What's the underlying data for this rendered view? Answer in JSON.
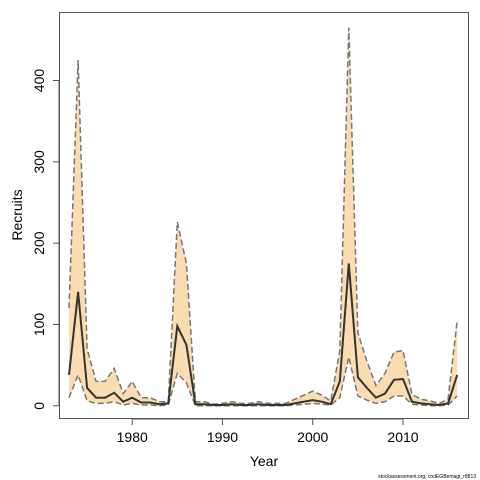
{
  "chart_data": {
    "type": "line",
    "title": "",
    "xlabel": "Year",
    "ylabel": "Recruits",
    "xlim": [
      1972,
      2017.2
    ],
    "ylim": [
      -15,
      483
    ],
    "x_ticks": [
      1980,
      1990,
      2000,
      2010
    ],
    "y_ticks": [
      0,
      100,
      200,
      300,
      400
    ],
    "grid": false,
    "legend": "none",
    "colors": {
      "band": "#f9ddb1",
      "median": "#333333",
      "bounds": "#777777"
    },
    "x": [
      1973,
      1974,
      1975,
      1976,
      1977,
      1978,
      1979,
      1980,
      1981,
      1982,
      1983,
      1984,
      1985,
      1986,
      1987,
      1988,
      1989,
      1990,
      1991,
      1992,
      1993,
      1994,
      1995,
      1996,
      1997,
      1998,
      1999,
      2000,
      2001,
      2002,
      2003,
      2004,
      2005,
      2006,
      2007,
      2008,
      2009,
      2010,
      2011,
      2012,
      2013,
      2014,
      2015,
      2016
    ],
    "series": [
      {
        "role": "median",
        "values": [
          38,
          140,
          22,
          10,
          10,
          16,
          5,
          10,
          4,
          4,
          2,
          3,
          98,
          75,
          2,
          2,
          1,
          1,
          2,
          1,
          1,
          2,
          1,
          1,
          1,
          3,
          5,
          7,
          5,
          2,
          30,
          175,
          35,
          22,
          10,
          15,
          32,
          33,
          5,
          3,
          2,
          1,
          3,
          38
        ]
      },
      {
        "role": "upper",
        "values": [
          120,
          425,
          70,
          30,
          30,
          46,
          15,
          30,
          10,
          10,
          5,
          5,
          226,
          175,
          5,
          5,
          2,
          3,
          5,
          3,
          3,
          5,
          3,
          3,
          3,
          8,
          13,
          18,
          13,
          6,
          68,
          465,
          90,
          55,
          25,
          40,
          66,
          68,
          14,
          8,
          6,
          3,
          8,
          105
        ]
      },
      {
        "role": "lower",
        "values": [
          10,
          38,
          6,
          3,
          3,
          5,
          1,
          3,
          1,
          1,
          0,
          1,
          40,
          28,
          0,
          0,
          0,
          0,
          0,
          0,
          0,
          0,
          0,
          0,
          0,
          1,
          2,
          3,
          2,
          1,
          10,
          60,
          12,
          7,
          3,
          5,
          12,
          12,
          2,
          1,
          0,
          0,
          1,
          12
        ]
      }
    ],
    "footnote": "stockassessment.org, codEGBemagt_r8813"
  }
}
